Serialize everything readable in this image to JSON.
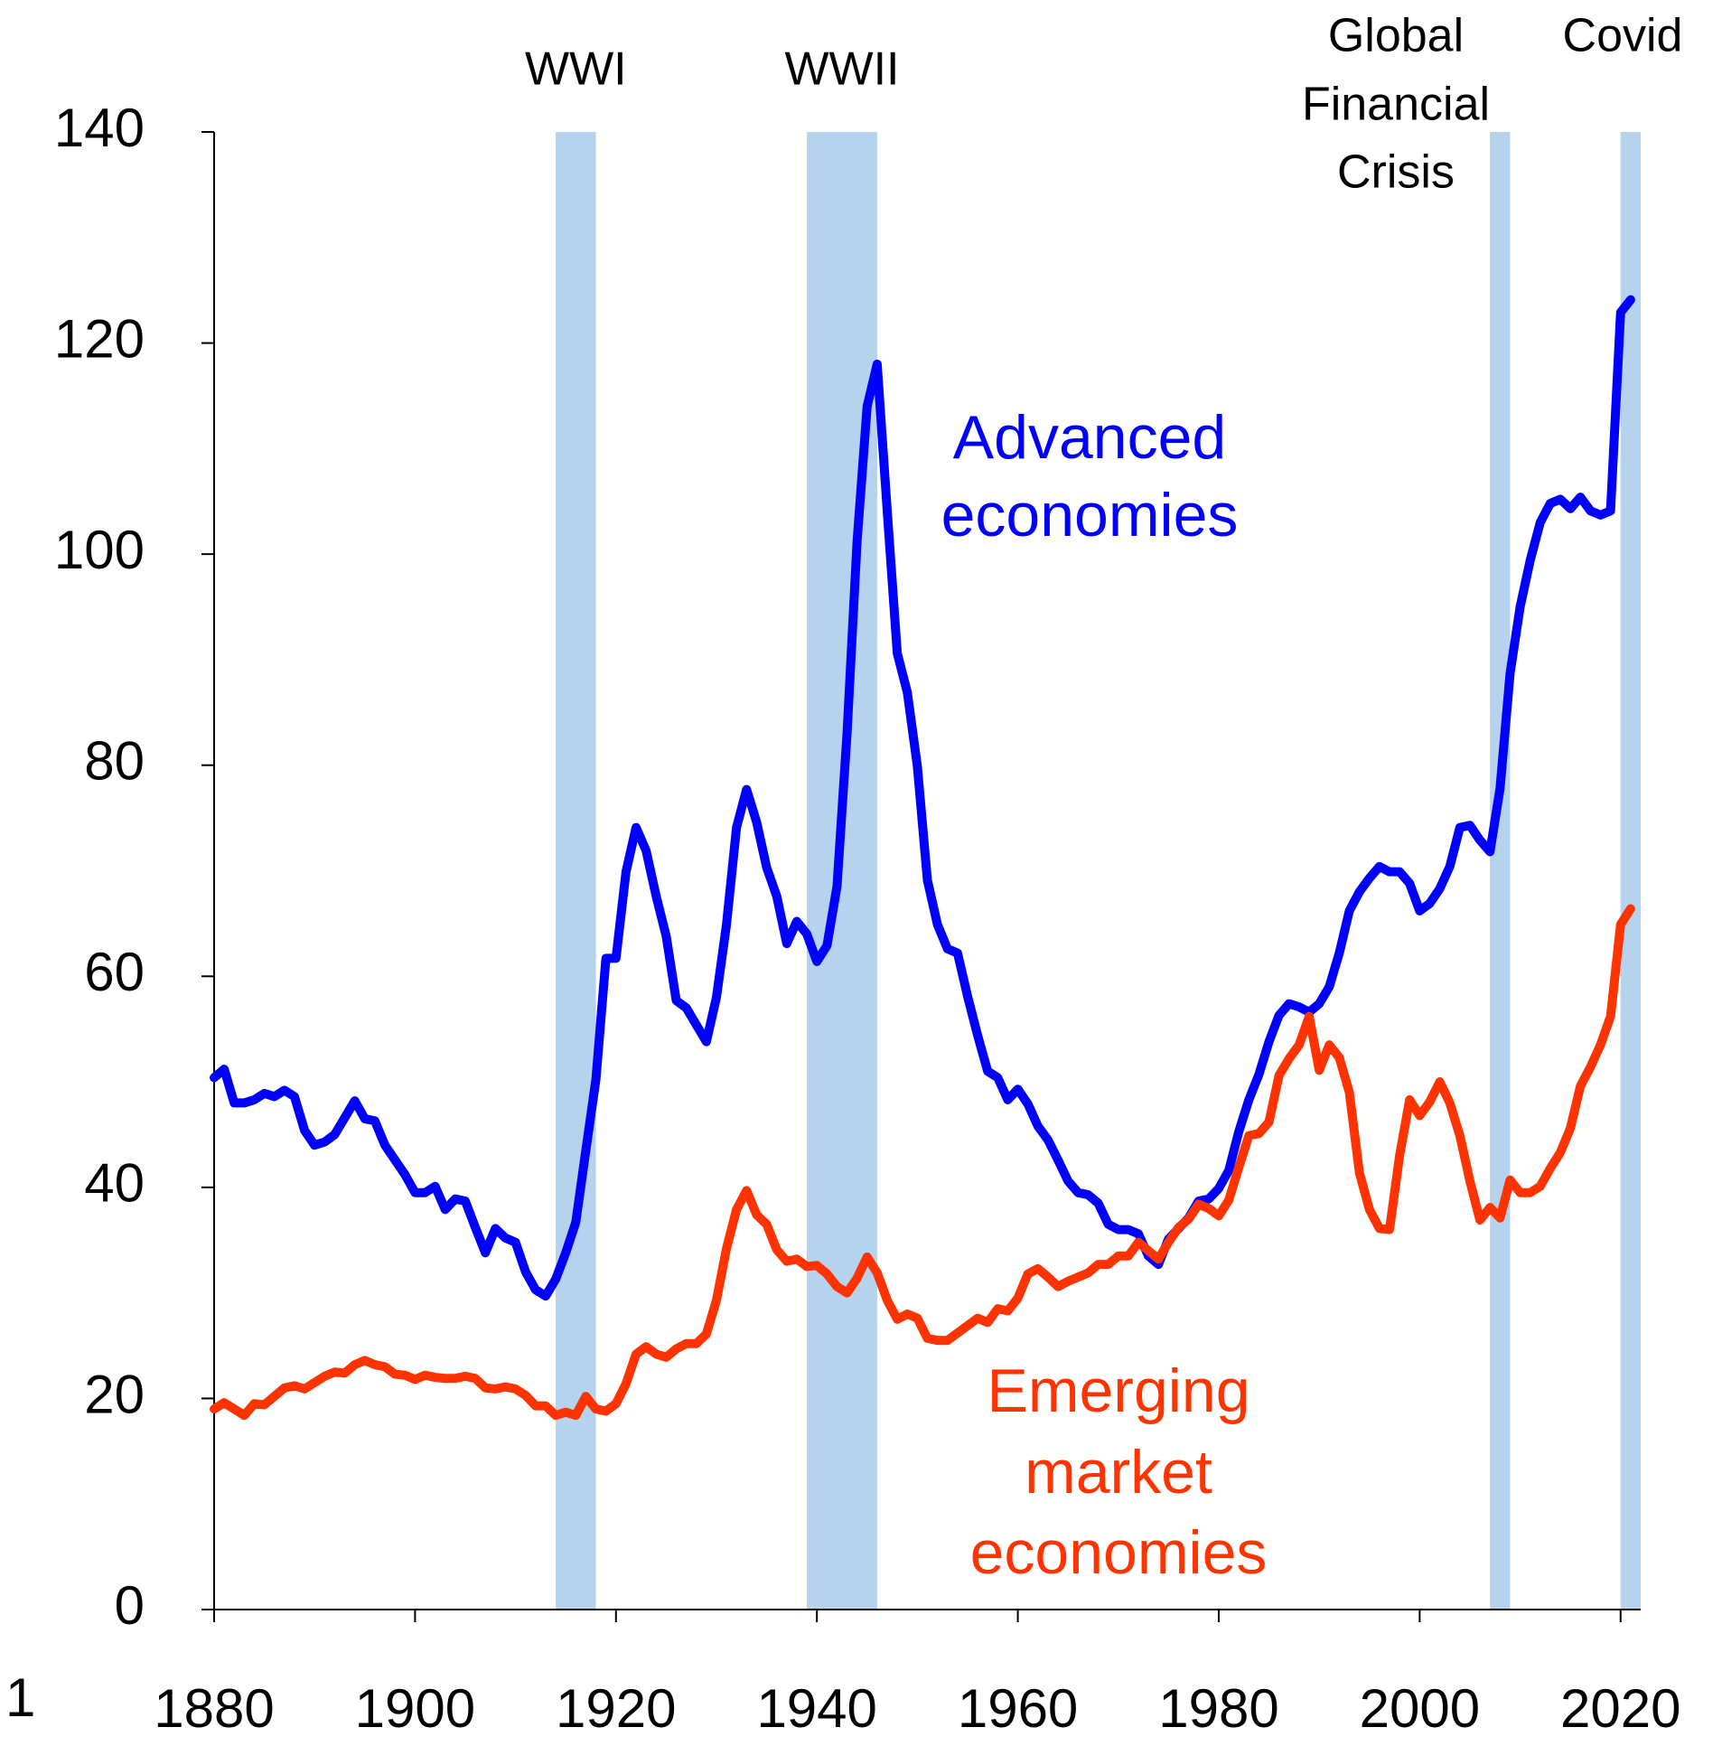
{
  "chart_data": {
    "type": "line",
    "x": [
      1880,
      1881,
      1882,
      1883,
      1884,
      1885,
      1886,
      1887,
      1888,
      1889,
      1890,
      1891,
      1892,
      1893,
      1894,
      1895,
      1896,
      1897,
      1898,
      1899,
      1900,
      1901,
      1902,
      1903,
      1904,
      1905,
      1906,
      1907,
      1908,
      1909,
      1910,
      1911,
      1912,
      1913,
      1914,
      1915,
      1916,
      1917,
      1918,
      1919,
      1920,
      1921,
      1922,
      1923,
      1924,
      1925,
      1926,
      1927,
      1928,
      1929,
      1930,
      1931,
      1932,
      1933,
      1934,
      1935,
      1936,
      1937,
      1938,
      1939,
      1940,
      1941,
      1942,
      1943,
      1944,
      1945,
      1946,
      1947,
      1948,
      1949,
      1950,
      1951,
      1952,
      1953,
      1954,
      1955,
      1956,
      1957,
      1958,
      1959,
      1960,
      1961,
      1962,
      1963,
      1964,
      1965,
      1966,
      1967,
      1968,
      1969,
      1970,
      1971,
      1972,
      1973,
      1974,
      1975,
      1976,
      1977,
      1978,
      1979,
      1980,
      1981,
      1982,
      1983,
      1984,
      1985,
      1986,
      1987,
      1988,
      1989,
      1990,
      1991,
      1992,
      1993,
      1994,
      1995,
      1996,
      1997,
      1998,
      1999,
      2000,
      2001,
      2002,
      2003,
      2004,
      2005,
      2006,
      2007,
      2008,
      2009,
      2010,
      2011,
      2012,
      2013,
      2014,
      2015,
      2016,
      2017,
      2018,
      2019,
      2020,
      2021
    ],
    "series": [
      {
        "name": [
          "Advanced",
          "economies"
        ],
        "color": "#0000ff",
        "values": [
          50.4,
          51.2,
          48,
          48,
          48.3,
          48.9,
          48.6,
          49.2,
          48.6,
          45.4,
          44,
          44.3,
          45,
          46.6,
          48.2,
          46.5,
          46.3,
          44,
          42.6,
          41.2,
          39.5,
          39.5,
          40.1,
          37.9,
          38.9,
          38.7,
          36.2,
          33.8,
          36.1,
          35.2,
          34.8,
          32,
          30.3,
          29.7,
          31.3,
          33.8,
          36.7,
          43.5,
          50.2,
          61.7,
          61.7,
          69.9,
          74.1,
          71.9,
          67.6,
          63.8,
          57.7,
          57,
          55.4,
          53.8,
          58,
          64.9,
          74.1,
          77.7,
          74.6,
          70.3,
          67.6,
          63.1,
          65.2,
          64,
          61.4,
          62.9,
          68.5,
          83,
          101.2,
          114,
          118,
          104.1,
          90.6,
          86.9,
          79.9,
          69.1,
          64.9,
          62.6,
          62.2,
          58.1,
          54.4,
          51,
          50.4,
          48.3,
          49.3,
          47.9,
          45.8,
          44.5,
          42.6,
          40.6,
          39.5,
          39.3,
          38.5,
          36.5,
          36,
          36,
          35.6,
          33.5,
          32.7,
          35.1,
          36.1,
          37.1,
          38.7,
          38.9,
          39.9,
          41.6,
          45.3,
          48.3,
          50.7,
          53.8,
          56.3,
          57.4,
          57.1,
          56.6,
          57.4,
          59,
          62.2,
          66.2,
          68,
          69.3,
          70.4,
          69.9,
          69.9,
          68.8,
          66.2,
          66.9,
          68.3,
          70.4,
          74.1,
          74.3,
          72.9,
          71.8,
          77.8,
          88.7,
          95,
          99.4,
          103,
          104.8,
          105.2,
          104.3,
          105.4,
          104.1,
          103.7,
          104.1,
          122.9,
          124.1
        ]
      },
      {
        "name": [
          "Emerging",
          "market",
          "economies"
        ],
        "color": "#ff3300",
        "values": [
          19,
          19.6,
          19,
          18.4,
          19.5,
          19.4,
          20.2,
          21,
          21.2,
          20.9,
          21.5,
          22.1,
          22.5,
          22.4,
          23.2,
          23.6,
          23.2,
          23,
          22.3,
          22.2,
          21.8,
          22.2,
          22,
          21.9,
          21.9,
          22.1,
          21.9,
          21,
          20.9,
          21.1,
          20.9,
          20.3,
          19.3,
          19.3,
          18.4,
          18.7,
          18.4,
          20.2,
          19,
          18.8,
          19.5,
          21.4,
          24.2,
          24.9,
          24.2,
          23.9,
          24.7,
          25.2,
          25.2,
          26.1,
          29.3,
          34.2,
          37.9,
          39.7,
          37.4,
          36.5,
          34.1,
          33,
          33.2,
          32.5,
          32.6,
          31.8,
          30.6,
          30,
          31.4,
          33.4,
          31.9,
          29.3,
          27.5,
          28,
          27.6,
          25.7,
          25.5,
          25.5,
          26.2,
          26.9,
          27.6,
          27.2,
          28.5,
          28.3,
          29.5,
          31.8,
          32.3,
          31.5,
          30.6,
          31.1,
          31.5,
          31.9,
          32.7,
          32.7,
          33.5,
          33.5,
          34.8,
          34,
          33.2,
          34.8,
          36.2,
          37,
          38.4,
          38,
          37.3,
          38.8,
          41.9,
          44.9,
          45.1,
          46.2,
          50.6,
          52.2,
          53.5,
          56.2,
          51.1,
          53.5,
          52.3,
          49,
          41.4,
          37.9,
          36.1,
          36,
          43,
          48.3,
          46.8,
          48.1,
          50,
          48,
          44.9,
          40.6,
          36.9,
          38.1,
          37.1,
          40.7,
          39.5,
          39.5,
          40.1,
          41.8,
          43.3,
          45.6,
          49.6,
          51.4,
          53.5,
          56.2,
          64.9,
          66.4
        ]
      }
    ],
    "shaded_periods": [
      {
        "label": [
          "WWI"
        ],
        "start": 1914,
        "end": 1918
      },
      {
        "label": [
          "WWII"
        ],
        "start": 1939,
        "end": 1946
      },
      {
        "label": [
          "Global",
          "Financial",
          "Crisis"
        ],
        "start": 2007,
        "end": 2009
      },
      {
        "label": [
          "Covid"
        ],
        "start": 2020,
        "end": 2022
      }
    ],
    "shade_color": "#b5d3ec",
    "xlim": [
      1880,
      2022
    ],
    "xticks": [
      1880,
      1900,
      1920,
      1940,
      1960,
      1980,
      2000,
      2020
    ],
    "ylim": [
      0,
      140
    ],
    "yticks": [
      0,
      20,
      40,
      60,
      80,
      100,
      120,
      140
    ],
    "corner_text": "1"
  }
}
